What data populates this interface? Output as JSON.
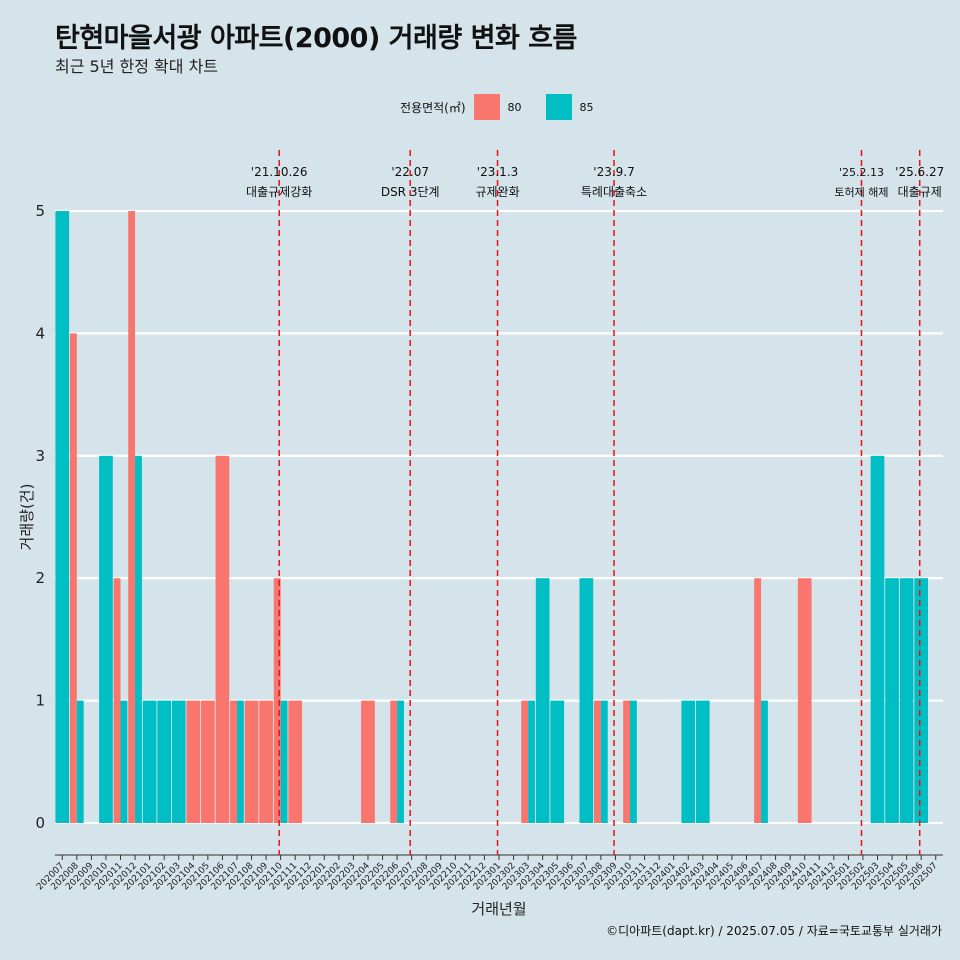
{
  "title": "탄현마을서광 아파트(2000) 거래량 변화 흐름",
  "subtitle": "최근 5년 한정 확대 차트",
  "caption": "©디아파트(dapt.kr) / 2025.07.05 / 자료=국토교통부 실거래가",
  "legend": {
    "title": "전용면적(㎡)",
    "items": [
      {
        "label": "80",
        "color": "#f8766d"
      },
      {
        "label": "85",
        "color": "#00bfc4"
      }
    ]
  },
  "chart_data": {
    "type": "bar",
    "xlabel": "거래년월",
    "ylabel": "거래량(건)",
    "ylim": [
      0,
      5
    ],
    "yticks": [
      0,
      1,
      2,
      3,
      4,
      5
    ],
    "grid": true,
    "categories": [
      "202007",
      "202008",
      "202009",
      "202010",
      "202011",
      "202012",
      "202101",
      "202102",
      "202103",
      "202104",
      "202105",
      "202106",
      "202107",
      "202108",
      "202109",
      "202110",
      "202111",
      "202112",
      "202201",
      "202202",
      "202203",
      "202204",
      "202205",
      "202206",
      "202207",
      "202208",
      "202209",
      "202210",
      "202211",
      "202212",
      "202301",
      "202302",
      "202303",
      "202304",
      "202305",
      "202306",
      "202307",
      "202308",
      "202309",
      "202310",
      "202311",
      "202312",
      "202401",
      "202402",
      "202403",
      "202404",
      "202405",
      "202406",
      "202407",
      "202408",
      "202409",
      "202410",
      "202411",
      "202412",
      "202501",
      "202502",
      "202503",
      "202504",
      "202505",
      "202506",
      "202507"
    ],
    "series": [
      {
        "name": "80",
        "color": "#f8766d",
        "values": [
          0,
          4,
          0,
          0,
          2,
          5,
          0,
          0,
          0,
          1,
          1,
          3,
          1,
          1,
          1,
          2,
          1,
          0,
          0,
          0,
          0,
          1,
          0,
          1,
          0,
          0,
          0,
          0,
          0,
          0,
          0,
          0,
          1,
          0,
          0,
          0,
          0,
          1,
          0,
          1,
          0,
          0,
          0,
          0,
          0,
          0,
          0,
          0,
          2,
          0,
          0,
          2,
          0,
          0,
          0,
          0,
          0,
          0,
          0,
          0,
          0
        ]
      },
      {
        "name": "85",
        "color": "#00bfc4",
        "values": [
          5,
          1,
          0,
          3,
          1,
          3,
          1,
          1,
          1,
          0,
          0,
          0,
          1,
          0,
          0,
          1,
          0,
          0,
          0,
          0,
          0,
          0,
          0,
          1,
          0,
          0,
          0,
          0,
          0,
          0,
          0,
          0,
          1,
          2,
          1,
          0,
          2,
          1,
          0,
          1,
          0,
          0,
          0,
          1,
          1,
          0,
          0,
          0,
          1,
          0,
          0,
          0,
          0,
          0,
          0,
          0,
          3,
          2,
          2,
          2,
          0
        ]
      }
    ],
    "events": [
      {
        "date": "'21.10.26",
        "label": "대출규제강화",
        "x": "202110"
      },
      {
        "date": "'22.07",
        "label": "DSR 3단계",
        "x": "202207"
      },
      {
        "date": "'23.1.3",
        "label": "규제완화",
        "x": "202301"
      },
      {
        "date": "'23.9.7",
        "label": "특례대출축소",
        "x": "202309"
      },
      {
        "date": "'25.2.13",
        "label": "토허제 해제",
        "x": "202502"
      },
      {
        "date": "'25.6.27",
        "label": "대출규제",
        "x": "202506"
      }
    ]
  }
}
